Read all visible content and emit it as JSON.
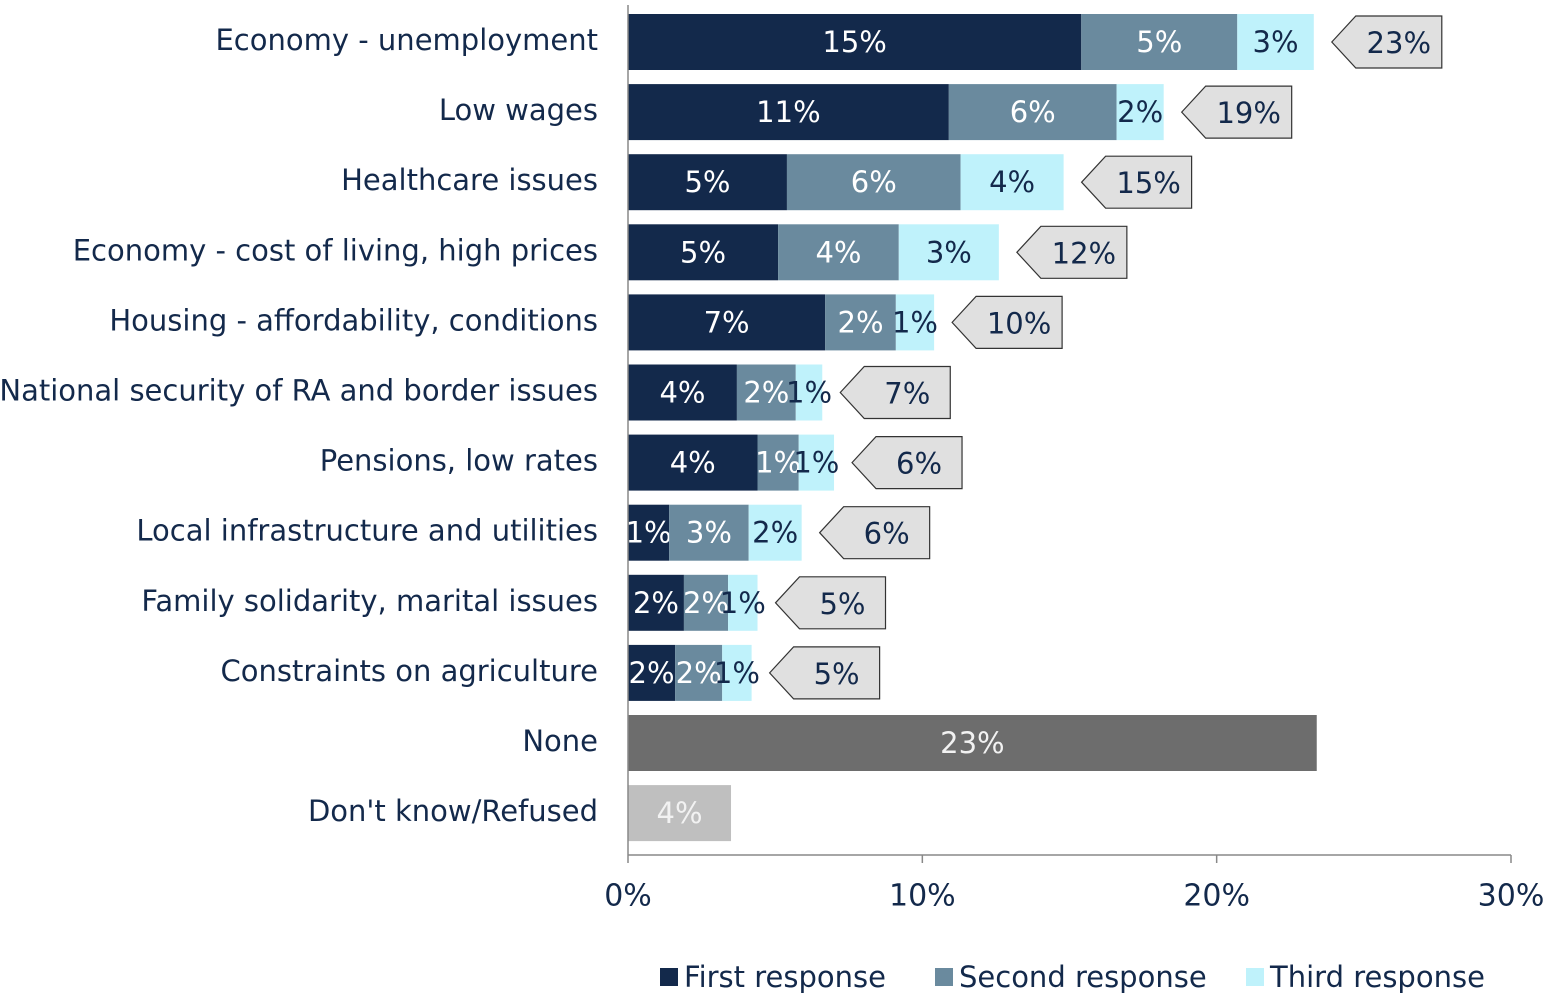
{
  "chart_data": {
    "type": "stacked_bar_horizontal",
    "categories": [
      "Economy - unemployment",
      "Low wages",
      "Healthcare issues",
      "Economy - cost of living, high prices",
      "Housing - affordability, conditions",
      "National security of RA and border issues",
      "Pensions, low rates",
      "Local infrastructure and utilities",
      "Family solidarity, marital issues",
      "Constraints on agriculture",
      "None",
      "Don't know/Refused"
    ],
    "series": [
      {
        "name": "First response",
        "color": "#13294b",
        "label_color": "#ffffff",
        "values": [
          15.4,
          10.9,
          5.4,
          5.1,
          6.7,
          3.7,
          4.4,
          1.4,
          1.9,
          1.6,
          null,
          null
        ],
        "value_labels": [
          "15%",
          "11%",
          "5%",
          "5%",
          "7%",
          "4%",
          "4%",
          "1%",
          "2%",
          "2%",
          null,
          null
        ]
      },
      {
        "name": "Second response",
        "color": "#6a8a9e",
        "label_color": "#ffffff",
        "values": [
          5.3,
          5.7,
          5.9,
          4.1,
          2.4,
          2.0,
          1.4,
          2.7,
          1.5,
          1.6,
          null,
          null
        ],
        "value_labels": [
          "5%",
          "6%",
          "6%",
          "4%",
          "2%",
          "2%",
          "1%",
          "3%",
          "2%",
          "2%",
          null,
          null
        ]
      },
      {
        "name": "Third response",
        "color": "#bff2fb",
        "label_color": "#13294b",
        "values": [
          2.6,
          1.6,
          3.5,
          3.4,
          1.3,
          0.9,
          1.2,
          1.8,
          1.0,
          1.0,
          null,
          null
        ],
        "value_labels": [
          "3%",
          "2%",
          "4%",
          "3%",
          "1%",
          "1%",
          "1%",
          "2%",
          "1%",
          "1%",
          null,
          null
        ]
      }
    ],
    "single_bars": {
      "values": [
        null,
        null,
        null,
        null,
        null,
        null,
        null,
        null,
        null,
        null,
        23.4,
        3.5
      ],
      "value_labels": [
        null,
        null,
        null,
        null,
        null,
        null,
        null,
        null,
        null,
        null,
        "23%",
        "4%"
      ],
      "colors": [
        null,
        null,
        null,
        null,
        null,
        null,
        null,
        null,
        null,
        null,
        "#6d6d6d",
        "#bfbfbf"
      ]
    },
    "totals": {
      "values": [
        23,
        19,
        15,
        12,
        10,
        7,
        6,
        6,
        5,
        5,
        null,
        null
      ],
      "value_labels": [
        "23%",
        "19%",
        "15%",
        "12%",
        "10%",
        "7%",
        "6%",
        "6%",
        "5%",
        "5%",
        null,
        null
      ]
    },
    "xlim": [
      0,
      30
    ],
    "xticks": [
      {
        "value": 0,
        "label": "0%"
      },
      {
        "value": 10,
        "label": "10%"
      },
      {
        "value": 20,
        "label": "20%"
      },
      {
        "value": 30,
        "label": "30%"
      }
    ],
    "legend": "bottom"
  }
}
